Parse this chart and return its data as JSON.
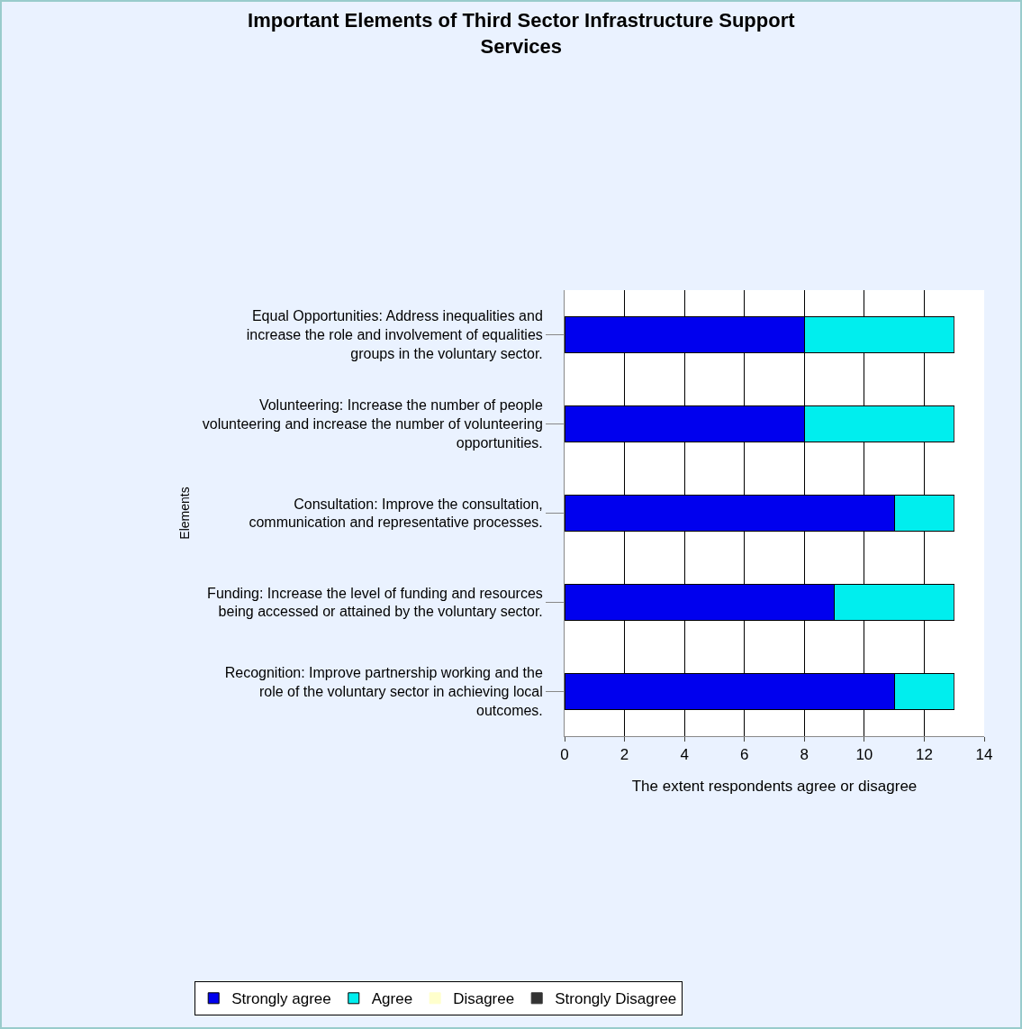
{
  "chart_data": {
    "type": "bar",
    "orientation": "horizontal",
    "stacked": true,
    "title": "Important Elements of Third Sector Infrastructure Support Services",
    "xlabel": "The extent respondents agree or disagree",
    "ylabel": "Elements",
    "categories": [
      "Equal Opportunities: Address inequalities and increase the role and involvement of equalities groups in the voluntary sector.",
      "Volunteering: Increase the number of people volunteering and increase the number of volunteering opportunities.",
      "Consultation: Improve the consultation, communication and representative processes.",
      "Funding: Increase the level of funding and resources being accessed or attained by the voluntary sector.",
      "Recognition: Improve partnership working and the role of the voluntary sector in achieving local outcomes."
    ],
    "series": [
      {
        "name": "Strongly agree",
        "color": "#0000ee",
        "values": [
          8,
          8,
          11,
          9,
          11
        ]
      },
      {
        "name": "Agree",
        "color": "#00eeee",
        "values": [
          5,
          5,
          2,
          4,
          2
        ]
      },
      {
        "name": "Disagree",
        "color": "#ffffcc",
        "values": [
          0,
          0,
          0,
          0,
          0
        ]
      },
      {
        "name": "Strongly Disagree",
        "color": "#333333",
        "values": [
          0,
          0,
          0,
          0,
          0
        ]
      }
    ],
    "xlim": [
      0,
      14
    ],
    "xticks": [
      0,
      2,
      4,
      6,
      8,
      10,
      12,
      14
    ],
    "grid": "x",
    "legend": "bottom"
  }
}
